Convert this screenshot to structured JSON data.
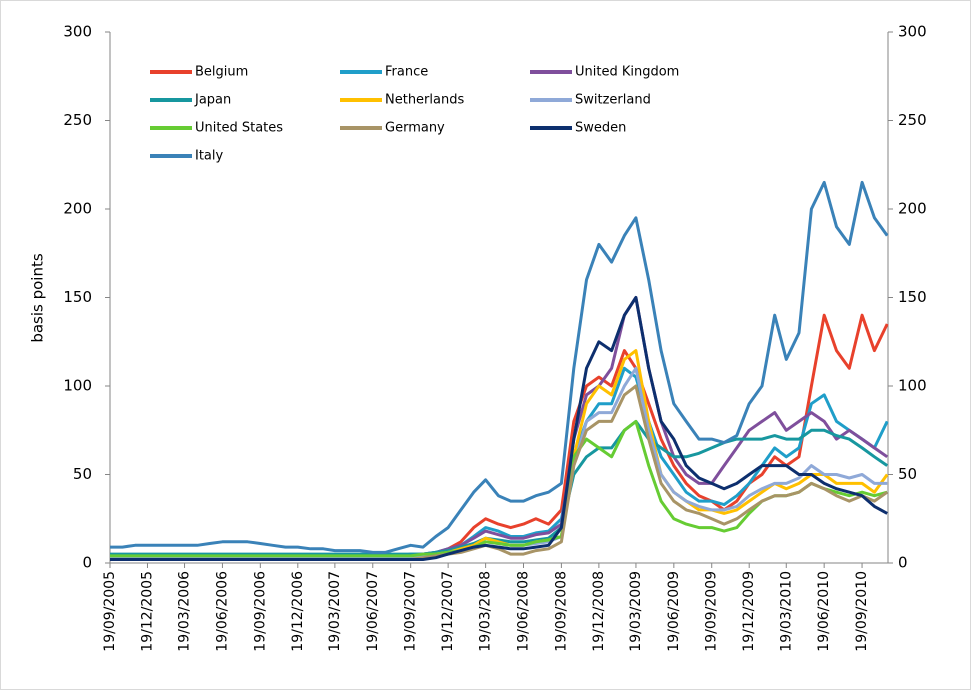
{
  "chart_data": {
    "type": "line",
    "ylabel": "basis points",
    "x": [
      "2005-09-19",
      "2005-10-19",
      "2005-11-19",
      "2005-12-19",
      "2006-01-19",
      "2006-02-19",
      "2006-03-19",
      "2006-04-19",
      "2006-05-19",
      "2006-06-19",
      "2006-07-19",
      "2006-08-19",
      "2006-09-19",
      "2006-10-19",
      "2006-11-19",
      "2006-12-19",
      "2007-01-19",
      "2007-02-19",
      "2007-03-19",
      "2007-04-19",
      "2007-05-19",
      "2007-06-19",
      "2007-07-19",
      "2007-08-19",
      "2007-09-19",
      "2007-10-19",
      "2007-11-19",
      "2007-12-19",
      "2008-01-19",
      "2008-02-19",
      "2008-03-19",
      "2008-04-19",
      "2008-05-19",
      "2008-06-19",
      "2008-07-19",
      "2008-08-19",
      "2008-09-19",
      "2008-10-19",
      "2008-11-19",
      "2008-12-19",
      "2009-01-19",
      "2009-02-19",
      "2009-03-19",
      "2009-04-19",
      "2009-05-19",
      "2009-06-19",
      "2009-07-19",
      "2009-08-19",
      "2009-09-19",
      "2009-10-19",
      "2009-11-19",
      "2009-12-19",
      "2010-01-19",
      "2010-02-19",
      "2010-03-19",
      "2010-04-19",
      "2010-05-19",
      "2010-06-19",
      "2010-07-19",
      "2010-08-19",
      "2010-09-19",
      "2010-10-19",
      "2010-11-19"
    ],
    "xlim": [
      "2005-09-19",
      "2010-11-21"
    ],
    "xticks": [
      {
        "value": "2005-09-19",
        "label": "19/09/2005"
      },
      {
        "value": "2005-12-19",
        "label": "19/12/2005"
      },
      {
        "value": "2006-03-19",
        "label": "19/03/2006"
      },
      {
        "value": "2006-06-19",
        "label": "19/06/2006"
      },
      {
        "value": "2006-09-19",
        "label": "19/09/2006"
      },
      {
        "value": "2006-12-19",
        "label": "19/12/2006"
      },
      {
        "value": "2007-03-19",
        "label": "19/03/2007"
      },
      {
        "value": "2007-06-19",
        "label": "19/06/2007"
      },
      {
        "value": "2007-09-19",
        "label": "19/09/2007"
      },
      {
        "value": "2007-12-19",
        "label": "19/12/2007"
      },
      {
        "value": "2008-03-19",
        "label": "19/03/2008"
      },
      {
        "value": "2008-06-19",
        "label": "19/06/2008"
      },
      {
        "value": "2008-09-19",
        "label": "19/09/2008"
      },
      {
        "value": "2008-12-19",
        "label": "19/12/2008"
      },
      {
        "value": "2009-03-19",
        "label": "19/03/2009"
      },
      {
        "value": "2009-06-19",
        "label": "19/06/2009"
      },
      {
        "value": "2009-09-19",
        "label": "19/09/2009"
      },
      {
        "value": "2009-12-19",
        "label": "19/12/2009"
      },
      {
        "value": "2010-03-19",
        "label": "19/03/2010"
      },
      {
        "value": "2010-06-19",
        "label": "19/06/2010"
      },
      {
        "value": "2010-09-19",
        "label": "19/09/2010"
      }
    ],
    "ylim": [
      0,
      300
    ],
    "yticks": [
      0,
      50,
      100,
      150,
      200,
      250,
      300
    ],
    "y2lim": [
      0,
      300
    ],
    "y2ticks": [
      0,
      50,
      100,
      150,
      200,
      250,
      300
    ],
    "series": [
      {
        "name": "Belgium",
        "color": "#e8412c",
        "values": [
          3,
          3,
          3,
          3,
          3,
          3,
          3,
          3,
          3,
          3,
          3,
          3,
          3,
          3,
          3,
          3,
          3,
          3,
          3,
          3,
          3,
          3,
          3,
          3,
          4,
          4,
          5,
          8,
          12,
          20,
          25,
          22,
          20,
          22,
          25,
          22,
          30,
          80,
          100,
          105,
          100,
          120,
          110,
          90,
          70,
          55,
          45,
          38,
          35,
          30,
          35,
          45,
          50,
          60,
          55,
          60,
          100,
          140,
          120,
          110,
          140,
          120,
          135
        ]
      },
      {
        "name": "France",
        "color": "#1f9ec9",
        "values": [
          4,
          4,
          4,
          4,
          4,
          4,
          4,
          4,
          4,
          4,
          4,
          4,
          4,
          4,
          4,
          4,
          4,
          4,
          4,
          4,
          4,
          4,
          4,
          4,
          5,
          5,
          6,
          8,
          10,
          15,
          20,
          18,
          15,
          15,
          17,
          18,
          25,
          60,
          80,
          90,
          90,
          110,
          105,
          80,
          60,
          50,
          40,
          35,
          35,
          33,
          38,
          45,
          55,
          65,
          60,
          65,
          90,
          95,
          80,
          75,
          70,
          65,
          80
        ]
      },
      {
        "name": "United Kingdom",
        "color": "#7f4f9c",
        "values": [
          3,
          3,
          3,
          3,
          3,
          3,
          3,
          3,
          3,
          3,
          3,
          3,
          3,
          3,
          3,
          3,
          3,
          3,
          3,
          3,
          3,
          3,
          3,
          3,
          4,
          5,
          6,
          8,
          10,
          14,
          18,
          16,
          14,
          14,
          16,
          17,
          22,
          70,
          95,
          100,
          110,
          140,
          150,
          110,
          80,
          60,
          50,
          45,
          45,
          55,
          65,
          75,
          80,
          85,
          75,
          80,
          85,
          80,
          70,
          75,
          70,
          65,
          60
        ]
      },
      {
        "name": "Japan",
        "color": "#17979f",
        "values": [
          5,
          5,
          5,
          5,
          5,
          5,
          5,
          5,
          5,
          5,
          5,
          5,
          5,
          5,
          5,
          5,
          5,
          5,
          5,
          5,
          5,
          5,
          5,
          5,
          5,
          5,
          6,
          7,
          9,
          11,
          14,
          13,
          12,
          12,
          13,
          14,
          20,
          50,
          60,
          65,
          65,
          75,
          80,
          70,
          65,
          60,
          60,
          62,
          65,
          68,
          70,
          70,
          70,
          72,
          70,
          70,
          75,
          75,
          72,
          70,
          65,
          60,
          55
        ]
      },
      {
        "name": "Netherlands",
        "color": "#ffc000",
        "values": [
          3,
          3,
          3,
          3,
          3,
          3,
          3,
          3,
          3,
          3,
          3,
          3,
          3,
          3,
          3,
          3,
          3,
          3,
          3,
          3,
          3,
          3,
          3,
          3,
          3,
          4,
          5,
          6,
          8,
          10,
          14,
          12,
          10,
          10,
          12,
          13,
          15,
          60,
          90,
          100,
          95,
          115,
          120,
          80,
          50,
          40,
          35,
          30,
          30,
          28,
          30,
          35,
          40,
          45,
          42,
          45,
          50,
          50,
          45,
          45,
          45,
          40,
          50
        ]
      },
      {
        "name": "Switzerland",
        "color": "#8fa9d8",
        "values": [
          3,
          3,
          3,
          3,
          3,
          3,
          3,
          3,
          3,
          3,
          3,
          3,
          3,
          3,
          3,
          3,
          3,
          3,
          3,
          3,
          3,
          3,
          3,
          3,
          3,
          4,
          4,
          6,
          7,
          9,
          12,
          11,
          10,
          10,
          11,
          12,
          15,
          55,
          80,
          85,
          85,
          100,
          110,
          75,
          50,
          40,
          35,
          32,
          30,
          30,
          32,
          38,
          42,
          45,
          45,
          48,
          55,
          50,
          50,
          48,
          50,
          45,
          45
        ]
      },
      {
        "name": "United States",
        "color": "#66cc33",
        "values": [
          4,
          4,
          4,
          4,
          4,
          4,
          4,
          4,
          4,
          4,
          4,
          4,
          4,
          4,
          4,
          4,
          4,
          4,
          4,
          4,
          4,
          4,
          4,
          4,
          4,
          5,
          5,
          6,
          7,
          9,
          12,
          11,
          10,
          10,
          12,
          13,
          15,
          60,
          70,
          65,
          60,
          75,
          80,
          55,
          35,
          25,
          22,
          20,
          20,
          18,
          20,
          28,
          35,
          38,
          38,
          40,
          45,
          42,
          40,
          38,
          40,
          38,
          40
        ]
      },
      {
        "name": "Germany",
        "color": "#a89466",
        "values": [
          2,
          2,
          2,
          2,
          2,
          2,
          2,
          2,
          2,
          2,
          2,
          2,
          2,
          2,
          2,
          2,
          2,
          2,
          2,
          2,
          2,
          2,
          2,
          2,
          2,
          3,
          4,
          5,
          6,
          8,
          10,
          8,
          5,
          5,
          7,
          8,
          12,
          55,
          75,
          80,
          80,
          95,
          100,
          70,
          45,
          35,
          30,
          28,
          25,
          22,
          25,
          30,
          35,
          38,
          38,
          40,
          45,
          42,
          38,
          35,
          38,
          35,
          40
        ]
      },
      {
        "name": "Sweden",
        "color": "#0d2f6e",
        "values": [
          2,
          2,
          2,
          2,
          2,
          2,
          2,
          2,
          2,
          2,
          2,
          2,
          2,
          2,
          2,
          2,
          2,
          2,
          2,
          2,
          2,
          2,
          2,
          2,
          2,
          2,
          3,
          5,
          7,
          9,
          10,
          9,
          8,
          8,
          9,
          10,
          20,
          70,
          110,
          125,
          120,
          140,
          150,
          110,
          80,
          70,
          55,
          48,
          45,
          42,
          45,
          50,
          55,
          55,
          55,
          50,
          50,
          45,
          42,
          40,
          38,
          32,
          28
        ]
      },
      {
        "name": "Italy",
        "color": "#3a82b8",
        "values": [
          9,
          9,
          10,
          10,
          10,
          10,
          10,
          10,
          11,
          12,
          12,
          12,
          11,
          10,
          9,
          9,
          8,
          8,
          7,
          7,
          7,
          6,
          6,
          8,
          10,
          9,
          15,
          20,
          30,
          40,
          47,
          38,
          35,
          35,
          38,
          40,
          45,
          110,
          160,
          180,
          170,
          185,
          195,
          160,
          120,
          90,
          80,
          70,
          70,
          68,
          72,
          90,
          100,
          140,
          115,
          130,
          200,
          215,
          190,
          180,
          215,
          195,
          185
        ]
      }
    ]
  }
}
